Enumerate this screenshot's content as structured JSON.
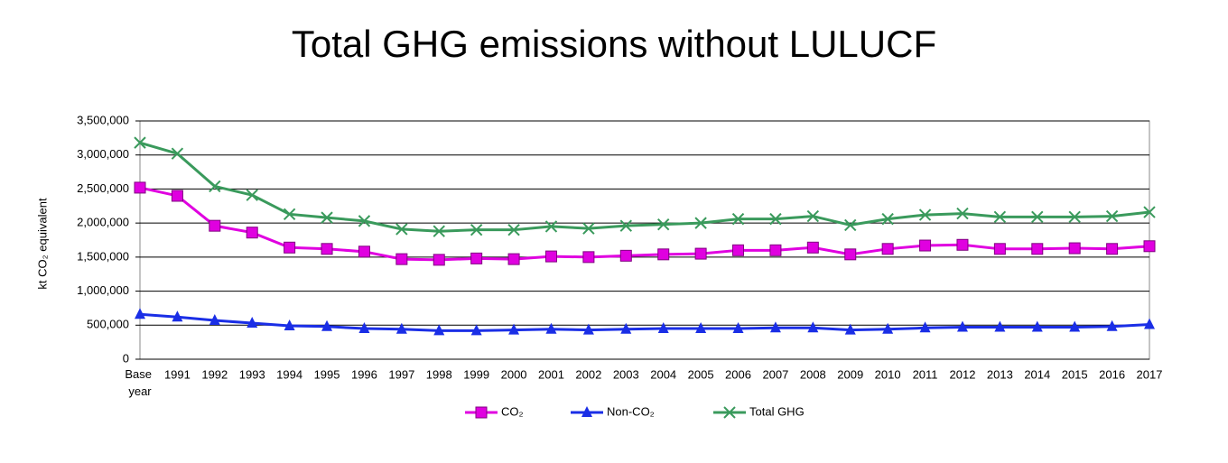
{
  "chart_data": {
    "type": "line",
    "title": "Total GHG emissions without LULUCF",
    "y_label": "kt CO₂ equivalent",
    "categories": [
      "Base year",
      "1991",
      "1992",
      "1993",
      "1994",
      "1995",
      "1996",
      "1997",
      "1998",
      "1999",
      "2000",
      "2001",
      "2002",
      "2003",
      "2004",
      "2005",
      "2006",
      "2007",
      "2008",
      "2009",
      "2010",
      "2011",
      "2012",
      "2013",
      "2014",
      "2015",
      "2016",
      "2017"
    ],
    "series": [
      {
        "name": "CO₂",
        "color": "#e000e0",
        "marker": "square",
        "values": [
          2520000,
          2400000,
          1960000,
          1860000,
          1640000,
          1620000,
          1580000,
          1470000,
          1460000,
          1480000,
          1470000,
          1510000,
          1500000,
          1520000,
          1540000,
          1550000,
          1600000,
          1600000,
          1640000,
          1540000,
          1620000,
          1670000,
          1680000,
          1620000,
          1620000,
          1630000,
          1620000,
          1660000
        ]
      },
      {
        "name": "Non-CO₂",
        "color": "#1a2ee6",
        "marker": "triangle",
        "values": [
          660000,
          620000,
          570000,
          530000,
          490000,
          480000,
          450000,
          440000,
          420000,
          420000,
          430000,
          440000,
          430000,
          440000,
          450000,
          450000,
          450000,
          460000,
          460000,
          430000,
          440000,
          460000,
          470000,
          470000,
          470000,
          470000,
          480000,
          510000
        ]
      },
      {
        "name": "Total GHG",
        "color": "#3a9a5c",
        "marker": "x",
        "values": [
          3180000,
          3020000,
          2540000,
          2410000,
          2130000,
          2080000,
          2030000,
          1910000,
          1880000,
          1900000,
          1900000,
          1950000,
          1920000,
          1960000,
          1980000,
          2000000,
          2060000,
          2060000,
          2100000,
          1970000,
          2060000,
          2120000,
          2140000,
          2090000,
          2090000,
          2090000,
          2100000,
          2160000
        ]
      }
    ],
    "ylim": [
      0,
      3500000
    ],
    "yticks": [
      0,
      {
        "value": 500000,
        "label": "500,000"
      },
      {
        "value": 1000000,
        "label": "1,000,000"
      },
      {
        "value": 1500000,
        "label": "1,500,000"
      },
      {
        "value": 2000000,
        "label": "2,000,000"
      },
      {
        "value": 2500000,
        "label": "2,500,000"
      },
      {
        "value": 3000000,
        "label": "3,000,000"
      },
      {
        "value": 3500000,
        "label": "3,500,000"
      }
    ],
    "grid": true,
    "legend": "bottom"
  }
}
